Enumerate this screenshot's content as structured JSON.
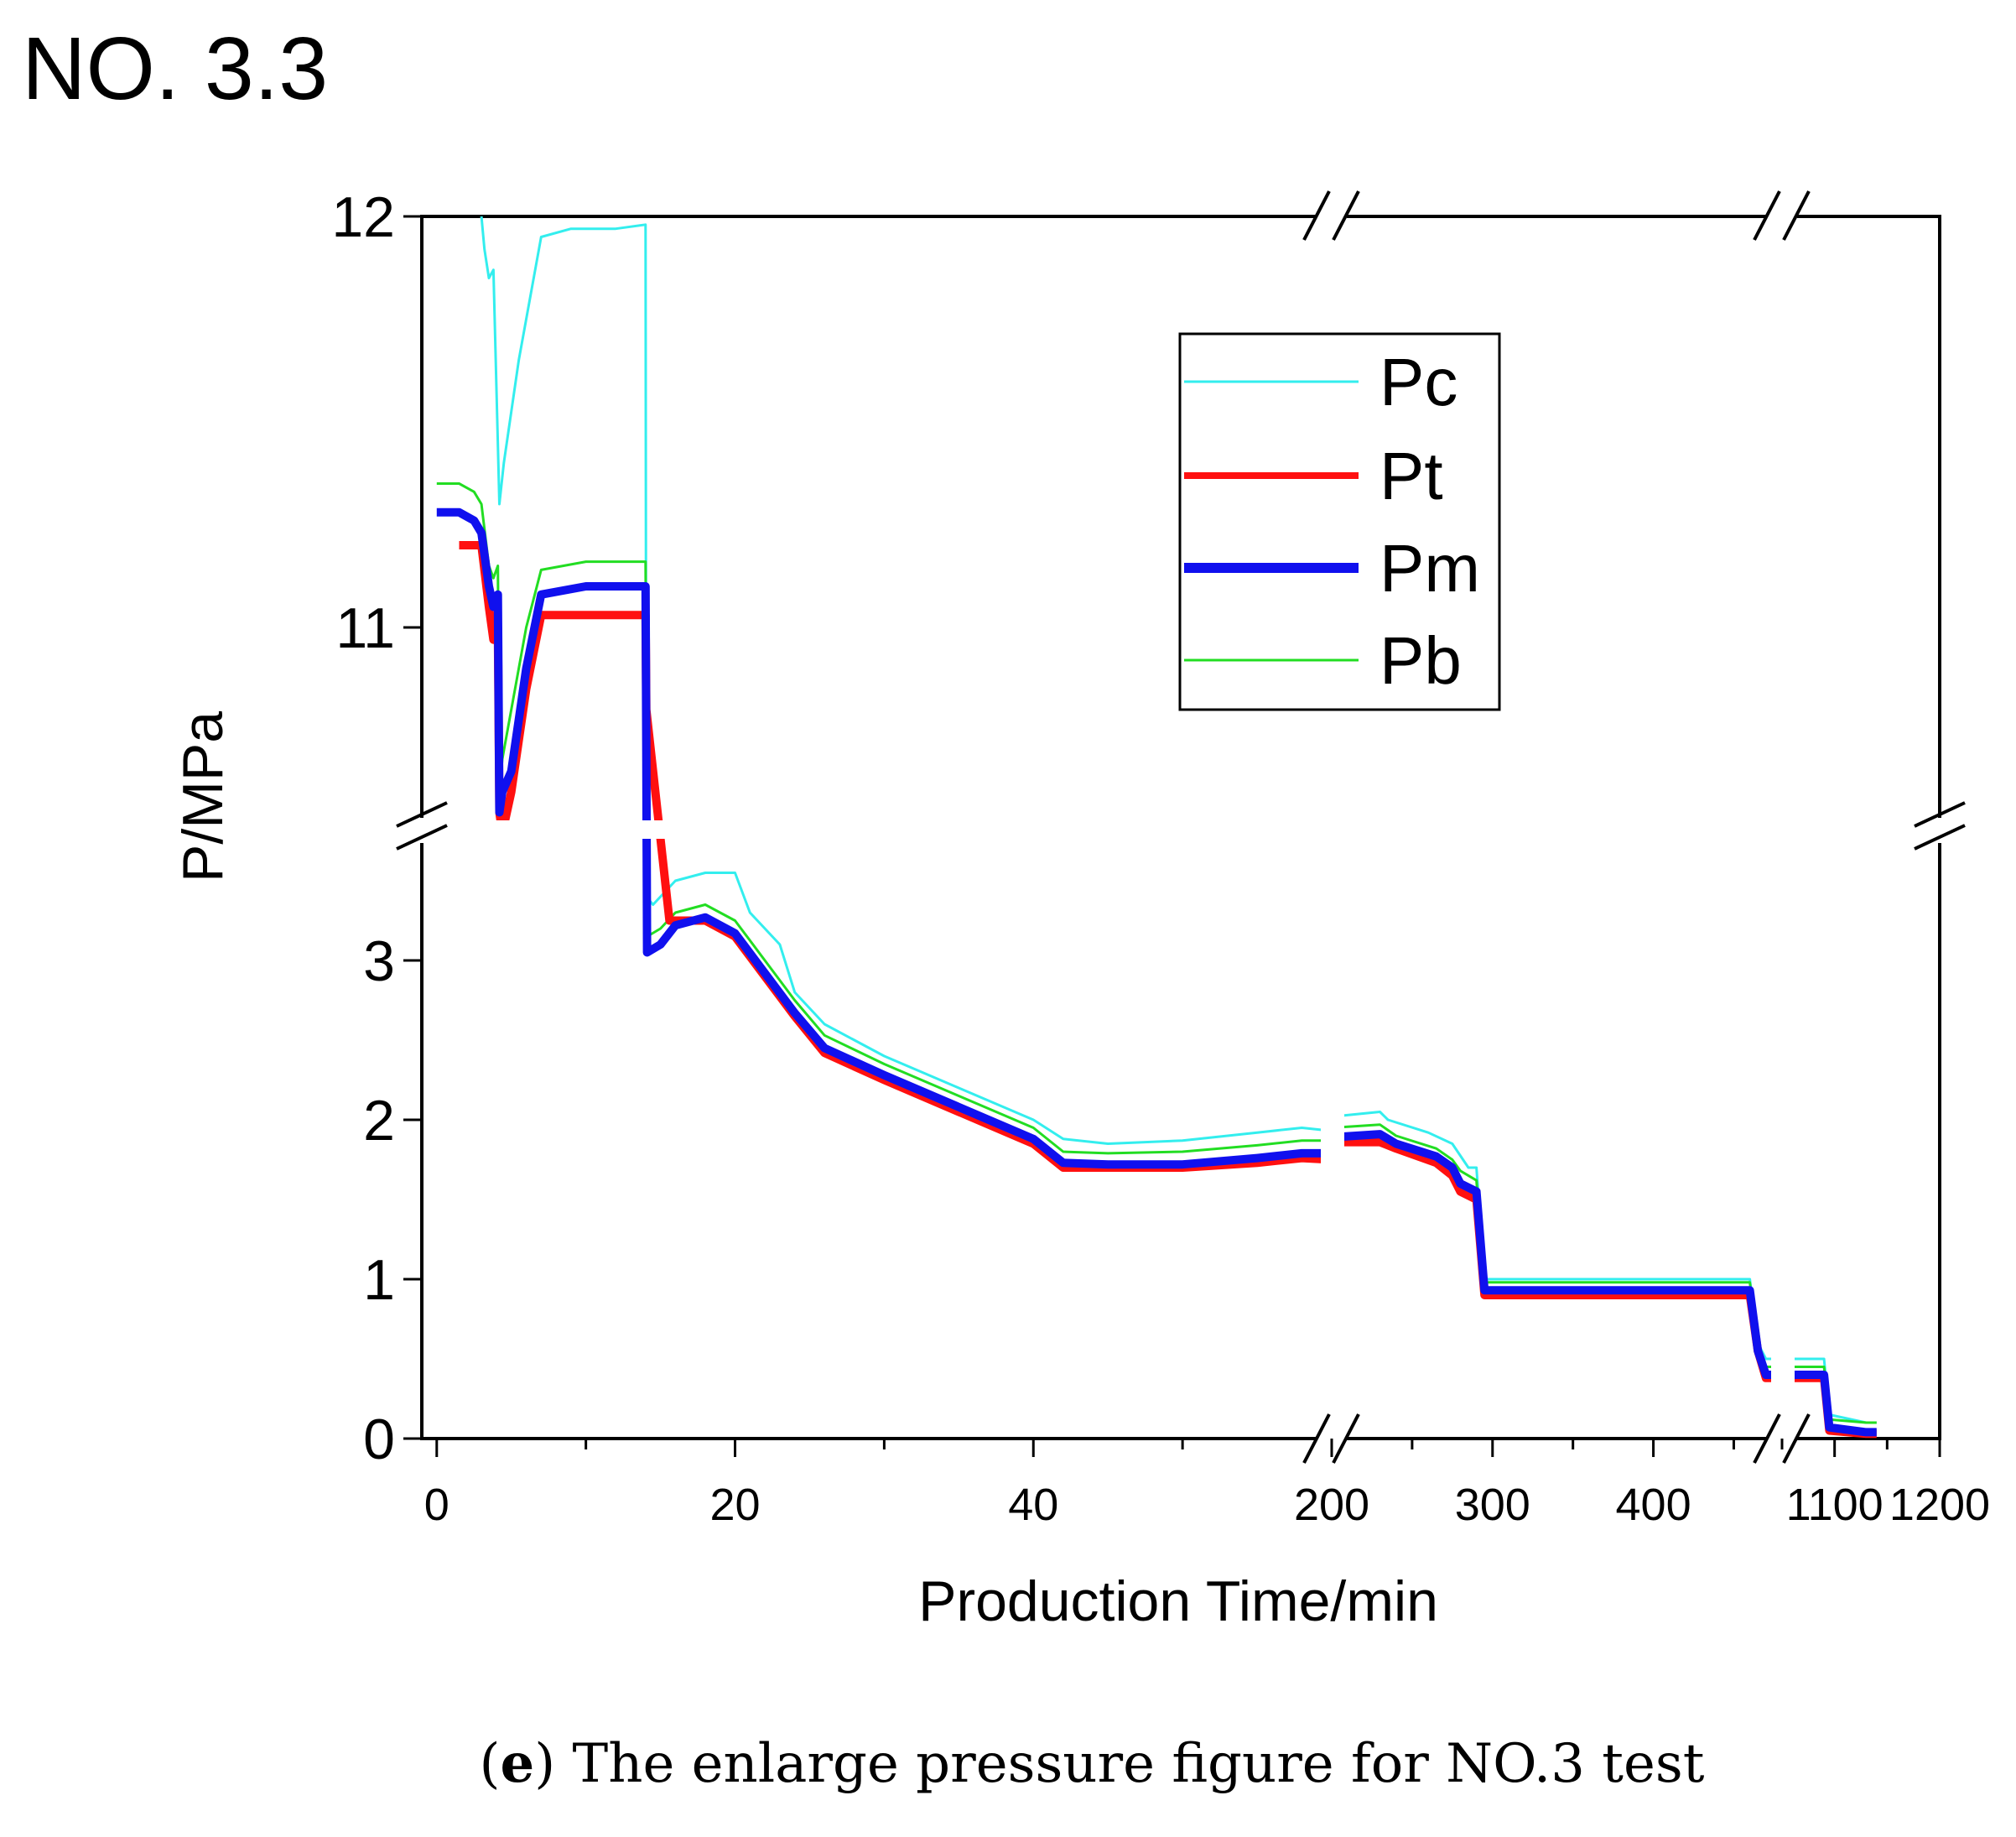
{
  "page_title": "NO. 3.3",
  "caption": {
    "letter": "e",
    "text": " The enlarge pressure figure for NO.3 test"
  },
  "colors": {
    "Pc": "#33eeee",
    "Pt": "#ff1010",
    "Pm": "#1010ee",
    "Pb": "#22dd22"
  },
  "chart_data": {
    "type": "line",
    "title": "",
    "xlabel": "Production Time/min",
    "ylabel": "P/MPa",
    "legend_position": "top-right",
    "x_ticks": [
      "0",
      "20",
      "40",
      "200",
      "300",
      "400",
      "1100",
      "1200"
    ],
    "y_ticks": [
      "0",
      "1",
      "2",
      "3",
      "11",
      "12"
    ],
    "x_segments": [
      {
        "range": [
          -1,
          60
        ],
        "ticks": [
          0,
          20,
          40
        ]
      },
      {
        "range": [
          200,
          480
        ],
        "ticks": [
          200,
          300,
          400
        ]
      },
      {
        "range": [
          1050,
          1200
        ],
        "ticks": [
          1100,
          1200
        ]
      }
    ],
    "y_segments": [
      {
        "range": [
          0,
          3.8
        ],
        "ticks": [
          0,
          1,
          2,
          3
        ]
      },
      {
        "range": [
          10.5,
          12
        ],
        "ticks": [
          11,
          12
        ]
      }
    ],
    "series": [
      {
        "name": "Pc",
        "points": [
          [
            3,
            12.0
          ],
          [
            3.2,
            11.92
          ],
          [
            3.5,
            11.85
          ],
          [
            3.8,
            11.87
          ],
          [
            4.2,
            11.3
          ],
          [
            4.5,
            11.4
          ],
          [
            5.5,
            11.65
          ],
          [
            7,
            11.95
          ],
          [
            9,
            11.97
          ],
          [
            12,
            11.97
          ],
          [
            14,
            11.98
          ],
          [
            14.05,
            3.4
          ],
          [
            14.5,
            3.35
          ],
          [
            16,
            3.5
          ],
          [
            18,
            3.55
          ],
          [
            20,
            3.55
          ],
          [
            21,
            3.3
          ],
          [
            23,
            3.1
          ],
          [
            24,
            2.8
          ],
          [
            26,
            2.6
          ],
          [
            30,
            2.4
          ],
          [
            35,
            2.2
          ],
          [
            40,
            2.0
          ],
          [
            42,
            1.88
          ],
          [
            45,
            1.85
          ],
          [
            50,
            1.87
          ],
          [
            55,
            1.92
          ],
          [
            58,
            1.95
          ],
          [
            60,
            1.93
          ],
          [
            200,
            2.02
          ],
          [
            230,
            2.05
          ],
          [
            235,
            2.0
          ],
          [
            260,
            1.92
          ],
          [
            275,
            1.85
          ],
          [
            285,
            1.7
          ],
          [
            290,
            1.7
          ],
          [
            295,
            1.0
          ],
          [
            300,
            1.0
          ],
          [
            380,
            1.0
          ],
          [
            460,
            1.0
          ],
          [
            465,
            0.6
          ],
          [
            470,
            0.5
          ],
          [
            480,
            0.5
          ],
          [
            1050,
            0.5
          ],
          [
            1090,
            0.5
          ],
          [
            1095,
            0.15
          ],
          [
            1130,
            0.1
          ],
          [
            1140,
            0.1
          ]
        ]
      },
      {
        "name": "Pt",
        "points": [
          [
            1.5,
            11.2
          ],
          [
            3,
            11.2
          ],
          [
            3.5,
            11.05
          ],
          [
            3.8,
            10.97
          ],
          [
            4.1,
            11.0
          ],
          [
            4.2,
            10.55
          ],
          [
            4.4,
            10.5
          ],
          [
            5,
            10.6
          ],
          [
            6,
            10.85
          ],
          [
            7,
            11.03
          ],
          [
            10,
            11.03
          ],
          [
            14,
            11.03
          ],
          [
            14.05,
            10.8
          ],
          [
            14.1,
            3.85
          ],
          [
            15.5,
            3.85
          ],
          [
            15.6,
            3.25
          ],
          [
            18,
            3.25
          ],
          [
            20,
            3.15
          ],
          [
            22,
            2.9
          ],
          [
            24,
            2.65
          ],
          [
            26,
            2.42
          ],
          [
            30,
            2.25
          ],
          [
            35,
            2.05
          ],
          [
            40,
            1.85
          ],
          [
            42,
            1.7
          ],
          [
            45,
            1.7
          ],
          [
            50,
            1.7
          ],
          [
            55,
            1.73
          ],
          [
            58,
            1.76
          ],
          [
            60,
            1.75
          ],
          [
            200,
            1.86
          ],
          [
            230,
            1.86
          ],
          [
            240,
            1.82
          ],
          [
            265,
            1.73
          ],
          [
            275,
            1.65
          ],
          [
            280,
            1.55
          ],
          [
            290,
            1.5
          ],
          [
            295,
            0.9
          ],
          [
            300,
            0.9
          ],
          [
            380,
            0.9
          ],
          [
            460,
            0.9
          ],
          [
            465,
            0.55
          ],
          [
            470,
            0.38
          ],
          [
            480,
            0.38
          ],
          [
            1050,
            0.38
          ],
          [
            1090,
            0.38
          ],
          [
            1095,
            0.05
          ],
          [
            1130,
            0.03
          ],
          [
            1140,
            0.03
          ]
        ]
      },
      {
        "name": "Pm",
        "points": [
          [
            0,
            11.28
          ],
          [
            1.5,
            11.28
          ],
          [
            2.5,
            11.26
          ],
          [
            3,
            11.23
          ],
          [
            3.5,
            11.1
          ],
          [
            3.8,
            11.05
          ],
          [
            4.1,
            11.08
          ],
          [
            4.2,
            10.55
          ],
          [
            4.4,
            10.6
          ],
          [
            5,
            10.65
          ],
          [
            6,
            10.9
          ],
          [
            7,
            11.08
          ],
          [
            10,
            11.1
          ],
          [
            14,
            11.1
          ],
          [
            14.05,
            10.7
          ],
          [
            14.1,
            3.05
          ],
          [
            15,
            3.1
          ],
          [
            16,
            3.22
          ],
          [
            18,
            3.27
          ],
          [
            20,
            3.17
          ],
          [
            22,
            2.92
          ],
          [
            24,
            2.67
          ],
          [
            26,
            2.45
          ],
          [
            30,
            2.28
          ],
          [
            35,
            2.08
          ],
          [
            40,
            1.88
          ],
          [
            42,
            1.73
          ],
          [
            45,
            1.72
          ],
          [
            50,
            1.72
          ],
          [
            55,
            1.76
          ],
          [
            58,
            1.79
          ],
          [
            60,
            1.79
          ],
          [
            200,
            1.89
          ],
          [
            230,
            1.91
          ],
          [
            240,
            1.85
          ],
          [
            265,
            1.77
          ],
          [
            275,
            1.7
          ],
          [
            280,
            1.6
          ],
          [
            290,
            1.55
          ],
          [
            295,
            0.93
          ],
          [
            300,
            0.93
          ],
          [
            380,
            0.93
          ],
          [
            460,
            0.93
          ],
          [
            465,
            0.55
          ],
          [
            470,
            0.4
          ],
          [
            480,
            0.4
          ],
          [
            1050,
            0.4
          ],
          [
            1090,
            0.4
          ],
          [
            1095,
            0.07
          ],
          [
            1130,
            0.04
          ],
          [
            1140,
            0.04
          ]
        ]
      },
      {
        "name": "Pb",
        "points": [
          [
            0,
            11.35
          ],
          [
            1.5,
            11.35
          ],
          [
            2.5,
            11.33
          ],
          [
            3,
            11.3
          ],
          [
            3.5,
            11.15
          ],
          [
            3.8,
            11.12
          ],
          [
            4.1,
            11.15
          ],
          [
            4.2,
            10.6
          ],
          [
            4.4,
            10.68
          ],
          [
            5,
            10.8
          ],
          [
            6,
            11.0
          ],
          [
            7,
            11.14
          ],
          [
            10,
            11.16
          ],
          [
            14,
            11.16
          ],
          [
            14.05,
            10.8
          ],
          [
            14.1,
            3.15
          ],
          [
            15,
            3.2
          ],
          [
            16,
            3.3
          ],
          [
            18,
            3.35
          ],
          [
            20,
            3.25
          ],
          [
            22,
            3.0
          ],
          [
            24,
            2.75
          ],
          [
            26,
            2.53
          ],
          [
            30,
            2.35
          ],
          [
            35,
            2.15
          ],
          [
            40,
            1.95
          ],
          [
            42,
            1.8
          ],
          [
            45,
            1.79
          ],
          [
            50,
            1.8
          ],
          [
            55,
            1.84
          ],
          [
            58,
            1.87
          ],
          [
            60,
            1.87
          ],
          [
            200,
            1.95
          ],
          [
            230,
            1.97
          ],
          [
            240,
            1.9
          ],
          [
            265,
            1.82
          ],
          [
            275,
            1.75
          ],
          [
            280,
            1.68
          ],
          [
            290,
            1.62
          ],
          [
            295,
            0.98
          ],
          [
            300,
            0.98
          ],
          [
            380,
            0.98
          ],
          [
            460,
            0.98
          ],
          [
            465,
            0.6
          ],
          [
            470,
            0.45
          ],
          [
            480,
            0.45
          ],
          [
            1050,
            0.45
          ],
          [
            1090,
            0.45
          ],
          [
            1095,
            0.12
          ],
          [
            1130,
            0.1
          ],
          [
            1140,
            0.1
          ]
        ]
      }
    ]
  }
}
